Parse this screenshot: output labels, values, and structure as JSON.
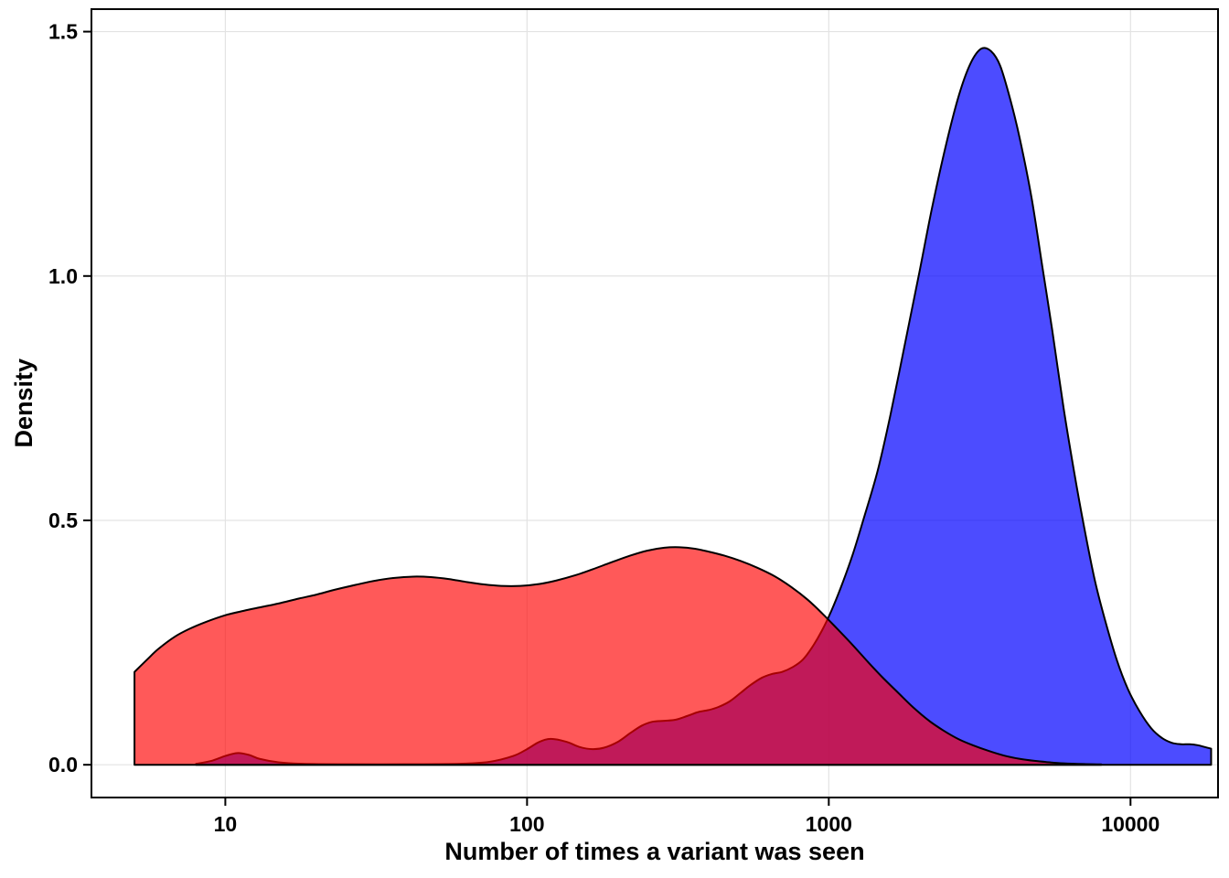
{
  "figure": {
    "background": "#FFFFFF"
  },
  "chart_data": {
    "type": "area",
    "title": "",
    "subtitle": "",
    "xlabel": "Number of times a variant was seen",
    "ylabel": "Density",
    "x_scale": "log10",
    "xlim": [
      3.6,
      19500
    ],
    "ylim": [
      -0.067,
      1.546
    ],
    "grid": true,
    "grid_color": "#E3E3E3",
    "panel_border_color": "#000000",
    "tick_color": "#000000",
    "legend": "none",
    "x_ticks": [
      {
        "value": 10,
        "label": "10"
      },
      {
        "value": 100,
        "label": "100"
      },
      {
        "value": 1000,
        "label": "1000"
      },
      {
        "value": 10000,
        "label": "10000"
      }
    ],
    "y_ticks": [
      {
        "value": 0,
        "label": "0.0"
      },
      {
        "value": 0.5,
        "label": "0.5"
      },
      {
        "value": 1.0,
        "label": "1.0"
      },
      {
        "value": 1.5,
        "label": "1.5"
      }
    ],
    "series": [
      {
        "name": "blue-density",
        "fill": "rgba(0,0,255,0.70)",
        "stroke": "#000000",
        "stroke_width": 2,
        "points": [
          [
            8,
            0.002
          ],
          [
            9,
            0.008
          ],
          [
            10,
            0.018
          ],
          [
            11,
            0.024
          ],
          [
            12,
            0.02
          ],
          [
            13,
            0.012
          ],
          [
            15,
            0.005
          ],
          [
            18,
            0.002
          ],
          [
            25,
            0.001
          ],
          [
            40,
            0.001
          ],
          [
            60,
            0.002
          ],
          [
            75,
            0.006
          ],
          [
            90,
            0.018
          ],
          [
            100,
            0.032
          ],
          [
            110,
            0.047
          ],
          [
            120,
            0.053
          ],
          [
            135,
            0.047
          ],
          [
            150,
            0.036
          ],
          [
            165,
            0.032
          ],
          [
            180,
            0.035
          ],
          [
            200,
            0.047
          ],
          [
            220,
            0.065
          ],
          [
            240,
            0.08
          ],
          [
            260,
            0.088
          ],
          [
            285,
            0.09
          ],
          [
            310,
            0.092
          ],
          [
            340,
            0.1
          ],
          [
            370,
            0.108
          ],
          [
            400,
            0.112
          ],
          [
            430,
            0.118
          ],
          [
            470,
            0.13
          ],
          [
            510,
            0.147
          ],
          [
            550,
            0.163
          ],
          [
            600,
            0.178
          ],
          [
            650,
            0.186
          ],
          [
            700,
            0.19
          ],
          [
            760,
            0.2
          ],
          [
            820,
            0.215
          ],
          [
            880,
            0.24
          ],
          [
            950,
            0.275
          ],
          [
            1020,
            0.315
          ],
          [
            1100,
            0.365
          ],
          [
            1200,
            0.43
          ],
          [
            1300,
            0.5
          ],
          [
            1450,
            0.6
          ],
          [
            1600,
            0.715
          ],
          [
            1800,
            0.87
          ],
          [
            2000,
            1.01
          ],
          [
            2200,
            1.14
          ],
          [
            2450,
            1.27
          ],
          [
            2700,
            1.37
          ],
          [
            2950,
            1.435
          ],
          [
            3200,
            1.465
          ],
          [
            3450,
            1.46
          ],
          [
            3700,
            1.43
          ],
          [
            4000,
            1.36
          ],
          [
            4300,
            1.28
          ],
          [
            4700,
            1.16
          ],
          [
            5100,
            1.02
          ],
          [
            5500,
            0.89
          ],
          [
            6000,
            0.73
          ],
          [
            6500,
            0.6
          ],
          [
            7000,
            0.49
          ],
          [
            7600,
            0.38
          ],
          [
            8200,
            0.3
          ],
          [
            9000,
            0.215
          ],
          [
            9800,
            0.155
          ],
          [
            10700,
            0.11
          ],
          [
            11700,
            0.075
          ],
          [
            12700,
            0.055
          ],
          [
            13700,
            0.045
          ],
          [
            14700,
            0.042
          ],
          [
            15700,
            0.042
          ],
          [
            16700,
            0.04
          ],
          [
            17700,
            0.036
          ],
          [
            18500,
            0.033
          ]
        ]
      },
      {
        "name": "red-density",
        "fill": "rgba(255,0,0,0.65)",
        "stroke": "#000000",
        "stroke_width": 2,
        "points": [
          [
            5,
            0.19
          ],
          [
            5.5,
            0.215
          ],
          [
            6,
            0.237
          ],
          [
            6.8,
            0.262
          ],
          [
            7.6,
            0.278
          ],
          [
            8.6,
            0.292
          ],
          [
            10,
            0.306
          ],
          [
            11.5,
            0.315
          ],
          [
            13,
            0.322
          ],
          [
            15,
            0.33
          ],
          [
            17.5,
            0.34
          ],
          [
            20,
            0.348
          ],
          [
            23,
            0.358
          ],
          [
            27,
            0.368
          ],
          [
            31,
            0.376
          ],
          [
            36,
            0.382
          ],
          [
            42,
            0.385
          ],
          [
            48,
            0.384
          ],
          [
            55,
            0.38
          ],
          [
            63,
            0.374
          ],
          [
            72,
            0.369
          ],
          [
            82,
            0.366
          ],
          [
            95,
            0.366
          ],
          [
            110,
            0.37
          ],
          [
            125,
            0.377
          ],
          [
            145,
            0.388
          ],
          [
            165,
            0.4
          ],
          [
            190,
            0.414
          ],
          [
            220,
            0.428
          ],
          [
            250,
            0.438
          ],
          [
            285,
            0.444
          ],
          [
            320,
            0.445
          ],
          [
            360,
            0.442
          ],
          [
            400,
            0.436
          ],
          [
            450,
            0.428
          ],
          [
            510,
            0.417
          ],
          [
            580,
            0.403
          ],
          [
            660,
            0.386
          ],
          [
            750,
            0.364
          ],
          [
            850,
            0.338
          ],
          [
            950,
            0.31
          ],
          [
            1060,
            0.28
          ],
          [
            1200,
            0.245
          ],
          [
            1350,
            0.21
          ],
          [
            1500,
            0.18
          ],
          [
            1700,
            0.147
          ],
          [
            1900,
            0.118
          ],
          [
            2150,
            0.09
          ],
          [
            2400,
            0.07
          ],
          [
            2700,
            0.052
          ],
          [
            3000,
            0.04
          ],
          [
            3400,
            0.028
          ],
          [
            3800,
            0.019
          ],
          [
            4300,
            0.012
          ],
          [
            4800,
            0.008
          ],
          [
            5400,
            0.005
          ],
          [
            6000,
            0.003
          ],
          [
            7000,
            0.0015
          ],
          [
            8000,
            0.0008
          ]
        ]
      }
    ]
  }
}
